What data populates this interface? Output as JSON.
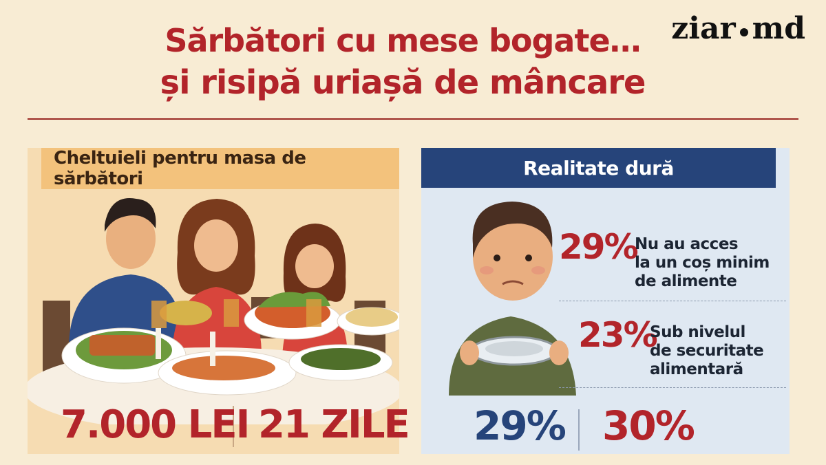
{
  "header": {
    "title_line1": "Sărbători cu mese bogate…",
    "title_line2": "și risipă uriașă de mâncare",
    "logo_left": "ziar",
    "logo_right": "md"
  },
  "left_panel": {
    "heading": "Cheltuieli pentru masa de sărbători",
    "stats": [
      {
        "value": "7.000 LEI"
      },
      {
        "value": "21 ZILE"
      }
    ]
  },
  "right_panel": {
    "heading": "Realitate dură",
    "stats": [
      {
        "percent": "29%",
        "lines": [
          "Nu au acces",
          "la un coș minim",
          "de alimente"
        ]
      },
      {
        "percent": "23%",
        "lines": [
          "Sub nivelul",
          "de securitate",
          "alimentară"
        ]
      }
    ],
    "bottom": [
      {
        "percent": "29%"
      },
      {
        "percent": "30%"
      }
    ]
  },
  "colors": {
    "title": "#b2242a",
    "accent_blue": "#26447a",
    "stat_red": "#b2242a"
  }
}
